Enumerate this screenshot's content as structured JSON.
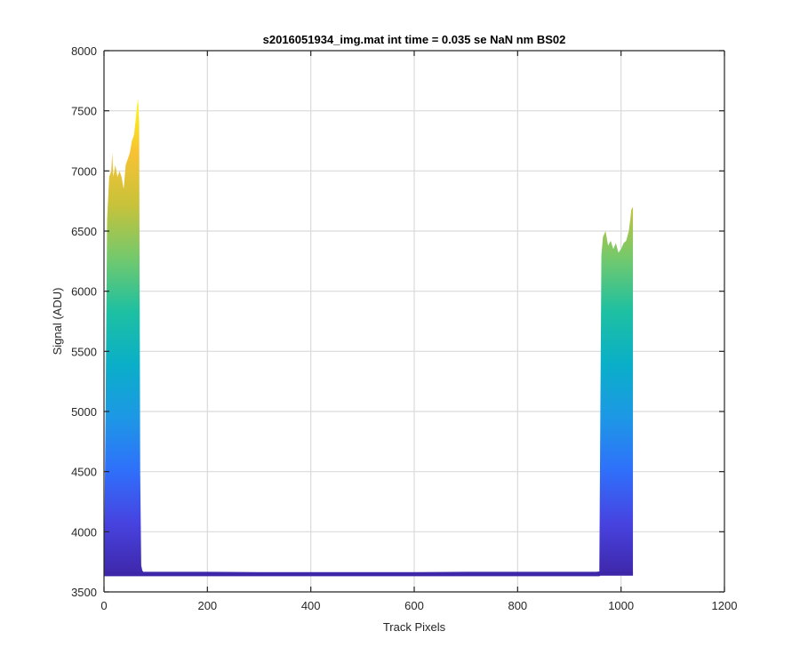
{
  "chart_data": {
    "type": "area",
    "title": "s2016051934_img.mat int time = 0.035 se  NaN nm BS02",
    "xlabel": "Track Pixels",
    "ylabel": "Signal (ADU)",
    "xlim": [
      0,
      1200
    ],
    "ylim": [
      3500,
      8000
    ],
    "xticks": [
      0,
      200,
      400,
      600,
      800,
      1000,
      1200
    ],
    "yticks": [
      3500,
      4000,
      4500,
      5000,
      5500,
      6000,
      6500,
      7000,
      7500,
      8000
    ],
    "grid": true,
    "colormap": [
      "#3e26a8",
      "#4743e0",
      "#2f70fb",
      "#1d98e5",
      "#0aafc8",
      "#1ec0a1",
      "#74c96c",
      "#c8c23a",
      "#f8c233",
      "#f9fb15"
    ],
    "baseline": 3630,
    "series": [
      {
        "x": [
          0,
          3,
          6,
          10,
          14,
          16,
          18,
          22,
          26,
          30,
          34,
          38,
          42,
          46,
          50,
          54,
          58,
          62,
          64,
          66,
          68,
          70,
          72,
          74,
          76,
          80,
          90,
          100,
          200,
          300,
          400,
          500,
          600,
          700,
          800,
          900,
          950,
          958,
          960,
          962,
          965,
          970,
          975,
          980,
          985,
          990,
          995,
          1000,
          1005,
          1010,
          1015,
          1018,
          1020,
          1023
        ],
        "upper": [
          3650,
          5000,
          6600,
          6950,
          7000,
          7150,
          6950,
          7050,
          6950,
          7000,
          6950,
          6850,
          7050,
          7100,
          7150,
          7250,
          7300,
          7450,
          7550,
          7600,
          7400,
          4500,
          3720,
          3680,
          3665,
          3660,
          3655,
          3652,
          3652,
          3650,
          3650,
          3650,
          3650,
          3652,
          3655,
          3660,
          3665,
          3670,
          5000,
          6300,
          6450,
          6500,
          6380,
          6420,
          6350,
          6400,
          6320,
          6350,
          6400,
          6420,
          6500,
          6600,
          6680,
          6700
        ],
        "lower": [
          3630,
          3630,
          3630,
          3630,
          3630,
          3630,
          3630,
          3630,
          3630,
          3630,
          3630,
          3630,
          3630,
          3630,
          3630,
          3630,
          3630,
          3630,
          3630,
          3630,
          3630,
          3630,
          3630,
          3630,
          3630,
          3630,
          3630,
          3630,
          3630,
          3630,
          3630,
          3630,
          3630,
          3630,
          3630,
          3630,
          3630,
          3630,
          3635,
          3635,
          3635,
          3635,
          3635,
          3635,
          3635,
          3635,
          3635,
          3635,
          3635,
          3635,
          3635,
          3635,
          3635,
          3635
        ]
      }
    ]
  }
}
